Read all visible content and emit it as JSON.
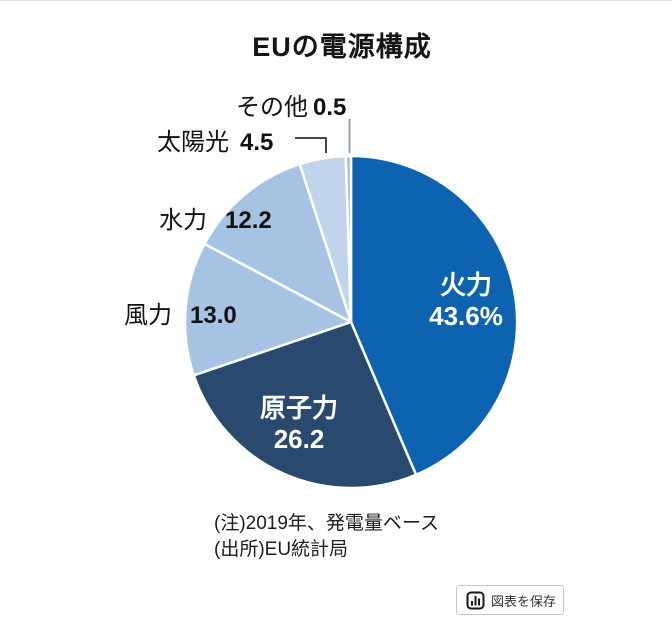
{
  "header": {
    "title": "EUの電源構成"
  },
  "chart_data": {
    "type": "pie",
    "title": "EUの電源構成",
    "unit": "percent",
    "start_angle": "top",
    "direction": "clockwise",
    "slices": [
      {
        "id": "thermal",
        "label": "火力",
        "value": 43.6,
        "display": "43.6%",
        "color": "#0e63b0",
        "label_position": "inside",
        "label_color": "#ffffff"
      },
      {
        "id": "nuclear",
        "label": "原子力",
        "value": 26.2,
        "display": "26.2",
        "color": "#29496f",
        "label_position": "inside",
        "label_color": "#ffffff"
      },
      {
        "id": "wind",
        "label": "風力",
        "value": 13.0,
        "display": "13.0",
        "color": "#a6c3e4",
        "label_position": "outside",
        "label_color": "#111111"
      },
      {
        "id": "hydro",
        "label": "水力",
        "value": 12.2,
        "display": "12.2",
        "color": "#a6c3e4",
        "label_position": "outside",
        "label_color": "#111111"
      },
      {
        "id": "solar",
        "label": "太陽光",
        "value": 4.5,
        "display": "4.5",
        "color": "#c0d4ec",
        "label_position": "outside",
        "label_color": "#111111"
      },
      {
        "id": "other",
        "label": "その他",
        "value": 0.5,
        "display": "0.5",
        "color": "#b3b9bf",
        "label_position": "outside",
        "label_color": "#111111"
      }
    ]
  },
  "footnotes": {
    "note": "(注)2019年、発電量ベース",
    "source": "(出所)EU統計局"
  },
  "toolbar": {
    "save_button_label": "図表を保存",
    "save_button_icon": "bar-chart-icon"
  }
}
